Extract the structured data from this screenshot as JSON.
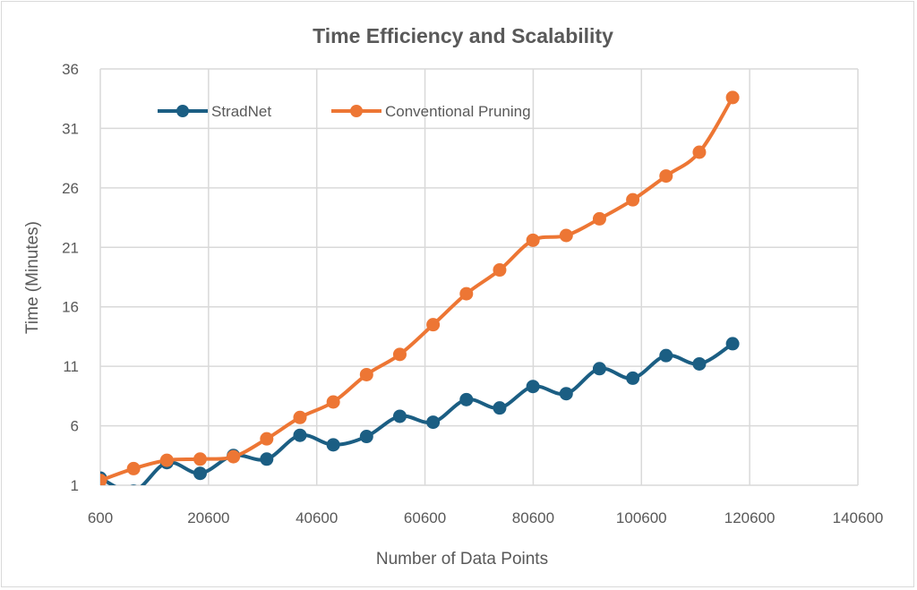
{
  "chart_data": {
    "type": "line",
    "title": "Time Efficiency and Scalability",
    "xlabel": "Number of Data Points",
    "ylabel": "Time (Minutes)",
    "xlim": [
      600,
      140600
    ],
    "ylim": [
      1,
      36
    ],
    "xticks": [
      600,
      20600,
      40600,
      60600,
      80600,
      100600,
      120600,
      140600
    ],
    "yticks": [
      1,
      6,
      11,
      16,
      21,
      26,
      31,
      36
    ],
    "grid": true,
    "legend_position": "top-left",
    "x": [
      600,
      6750,
      12900,
      19050,
      25200,
      31350,
      37500,
      43650,
      49800,
      55950,
      62100,
      68250,
      74400,
      80550,
      86700,
      92850,
      99000,
      105150,
      111300,
      117450
    ],
    "series": [
      {
        "name": "StradNet",
        "color": "#1b5e83",
        "values": [
          1.6,
          0.5,
          2.9,
          2.0,
          3.5,
          3.2,
          5.2,
          4.4,
          5.1,
          6.8,
          6.3,
          8.2,
          7.5,
          9.3,
          8.7,
          10.8,
          10.0,
          11.9,
          11.2,
          12.9
        ]
      },
      {
        "name": "Conventional Pruning",
        "color": "#ed7634",
        "values": [
          1.4,
          2.4,
          3.1,
          3.2,
          3.4,
          4.9,
          6.7,
          8.0,
          10.3,
          12.0,
          14.5,
          17.1,
          19.1,
          21.6,
          22.0,
          23.4,
          25.0,
          27.0,
          29.0,
          33.6
        ]
      }
    ]
  }
}
